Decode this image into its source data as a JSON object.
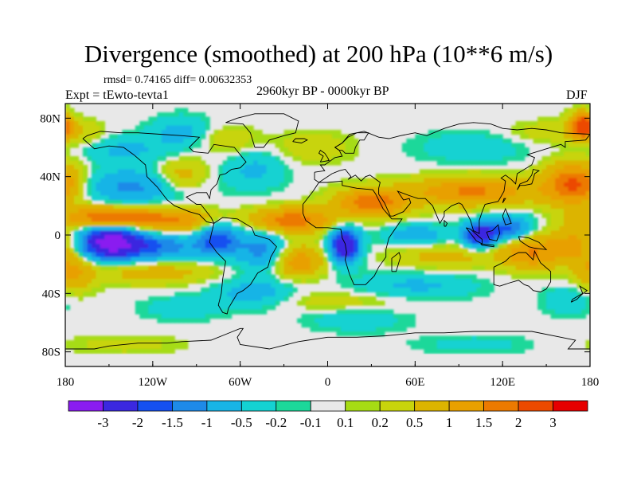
{
  "chart_data": {
    "type": "heatmap",
    "title": "Divergence (smoothed) at 200 hPa (10**6 m/s)",
    "stats": "rmsd= 0.74165 diff= 0.00632353",
    "experiment": "Expt = tEwto-tevta1",
    "period": "2960kyr BP - 0000kyr BP",
    "season": "DJF",
    "xlim": [
      -180,
      180
    ],
    "ylim": [
      -90,
      90
    ],
    "x_ticks": [
      {
        "value": -180,
        "label": "180"
      },
      {
        "value": -120,
        "label": "120W"
      },
      {
        "value": -60,
        "label": "60W"
      },
      {
        "value": 0,
        "label": "0"
      },
      {
        "value": 60,
        "label": "60E"
      },
      {
        "value": 120,
        "label": "120E"
      },
      {
        "value": 180,
        "label": "180"
      }
    ],
    "y_ticks": [
      {
        "value": 80,
        "label": "80N"
      },
      {
        "value": 40,
        "label": "40N"
      },
      {
        "value": 0,
        "label": "0"
      },
      {
        "value": -40,
        "label": "40S"
      },
      {
        "value": -80,
        "label": "80S"
      }
    ],
    "colorbar": {
      "colors": [
        "#8a1cf0",
        "#3b28e0",
        "#1550f0",
        "#1e8ae8",
        "#18b4e6",
        "#14d2d2",
        "#1cd89a",
        "#e8e8e8",
        "#a6dc14",
        "#c8d40c",
        "#dcb400",
        "#e8a000",
        "#ec7a00",
        "#ec4a00",
        "#e60000"
      ],
      "labels": [
        "-3",
        "-2",
        "-1.5",
        "-1",
        "-0.5",
        "-0.2",
        "-0.1",
        "0.1",
        "0.2",
        "0.5",
        "1",
        "1.5",
        "2",
        "3"
      ]
    },
    "anomalies": [
      {
        "lon": -150,
        "lat": -5,
        "value": -3.2,
        "sx": 14,
        "sy": 8
      },
      {
        "lon": -120,
        "lat": -8,
        "value": -1.5,
        "sx": 22,
        "sy": 7
      },
      {
        "lon": -75,
        "lat": -3,
        "value": -1.8,
        "sx": 10,
        "sy": 8
      },
      {
        "lon": -45,
        "lat": -10,
        "value": -1.2,
        "sx": 12,
        "sy": 10
      },
      {
        "lon": 12,
        "lat": -7,
        "value": -3.0,
        "sx": 7,
        "sy": 8
      },
      {
        "lon": 105,
        "lat": 0,
        "value": -2.5,
        "sx": 8,
        "sy": 6
      },
      {
        "lon": 125,
        "lat": 5,
        "value": -1.6,
        "sx": 10,
        "sy": 6
      },
      {
        "lon": 60,
        "lat": 0,
        "value": -0.9,
        "sx": 15,
        "sy": 5
      },
      {
        "lon": -135,
        "lat": 33,
        "value": -1.1,
        "sx": 28,
        "sy": 8
      },
      {
        "lon": -50,
        "lat": 45,
        "value": -0.6,
        "sx": 15,
        "sy": 10
      },
      {
        "lon": -50,
        "lat": -40,
        "value": -0.8,
        "sx": 20,
        "sy": 7
      },
      {
        "lon": 60,
        "lat": -35,
        "value": -0.6,
        "sx": 30,
        "sy": 7
      },
      {
        "lon": 100,
        "lat": 60,
        "value": -0.4,
        "sx": 30,
        "sy": 8
      },
      {
        "lon": 165,
        "lat": -45,
        "value": -0.5,
        "sx": 12,
        "sy": 7
      },
      {
        "lon": -100,
        "lat": 70,
        "value": -0.7,
        "sx": 15,
        "sy": 8
      },
      {
        "lon": -140,
        "lat": 58,
        "value": -0.6,
        "sx": 20,
        "sy": 7
      },
      {
        "lon": 20,
        "lat": -58,
        "value": -0.4,
        "sx": 25,
        "sy": 6
      },
      {
        "lon": -100,
        "lat": -50,
        "value": -0.4,
        "sx": 20,
        "sy": 6
      },
      {
        "lon": -150,
        "lat": 12,
        "value": 2.2,
        "sx": 20,
        "sy": 5
      },
      {
        "lon": -105,
        "lat": 10,
        "value": 1.5,
        "sx": 20,
        "sy": 6
      },
      {
        "lon": -25,
        "lat": 10,
        "value": 1.9,
        "sx": 20,
        "sy": 6
      },
      {
        "lon": 30,
        "lat": 22,
        "value": 1.8,
        "sx": 18,
        "sy": 7
      },
      {
        "lon": 100,
        "lat": 30,
        "value": 1.6,
        "sx": 30,
        "sy": 7
      },
      {
        "lon": 170,
        "lat": 35,
        "value": 2.2,
        "sx": 15,
        "sy": 10
      },
      {
        "lon": -100,
        "lat": 40,
        "value": 0.9,
        "sx": 12,
        "sy": 8
      },
      {
        "lon": -120,
        "lat": -25,
        "value": 0.8,
        "sx": 30,
        "sy": 6
      },
      {
        "lon": -20,
        "lat": -18,
        "value": 1.4,
        "sx": 12,
        "sy": 8
      },
      {
        "lon": 140,
        "lat": -12,
        "value": 1.5,
        "sx": 15,
        "sy": 8
      },
      {
        "lon": 170,
        "lat": -5,
        "value": 1.0,
        "sx": 12,
        "sy": 10
      },
      {
        "lon": -175,
        "lat": -25,
        "value": 1.0,
        "sx": 10,
        "sy": 10
      },
      {
        "lon": 80,
        "lat": -15,
        "value": 0.7,
        "sx": 25,
        "sy": 6
      },
      {
        "lon": 5,
        "lat": -45,
        "value": 0.4,
        "sx": 40,
        "sy": 5
      },
      {
        "lon": -10,
        "lat": 60,
        "value": 0.4,
        "sx": 20,
        "sy": 8
      },
      {
        "lon": -170,
        "lat": 70,
        "value": 0.5,
        "sx": 12,
        "sy": 6
      },
      {
        "lon": -70,
        "lat": 65,
        "value": 0.5,
        "sx": 15,
        "sy": 7
      },
      {
        "lon": 150,
        "lat": 70,
        "value": 0.4,
        "sx": 20,
        "sy": 6
      },
      {
        "lon": -140,
        "lat": -75,
        "value": 0.3,
        "sx": 30,
        "sy": 5
      },
      {
        "lon": 100,
        "lat": -75,
        "value": -0.3,
        "sx": 30,
        "sy": 5
      },
      {
        "lon": 175,
        "lat": 75,
        "value": 2.6,
        "sx": 6,
        "sy": 6
      }
    ]
  }
}
